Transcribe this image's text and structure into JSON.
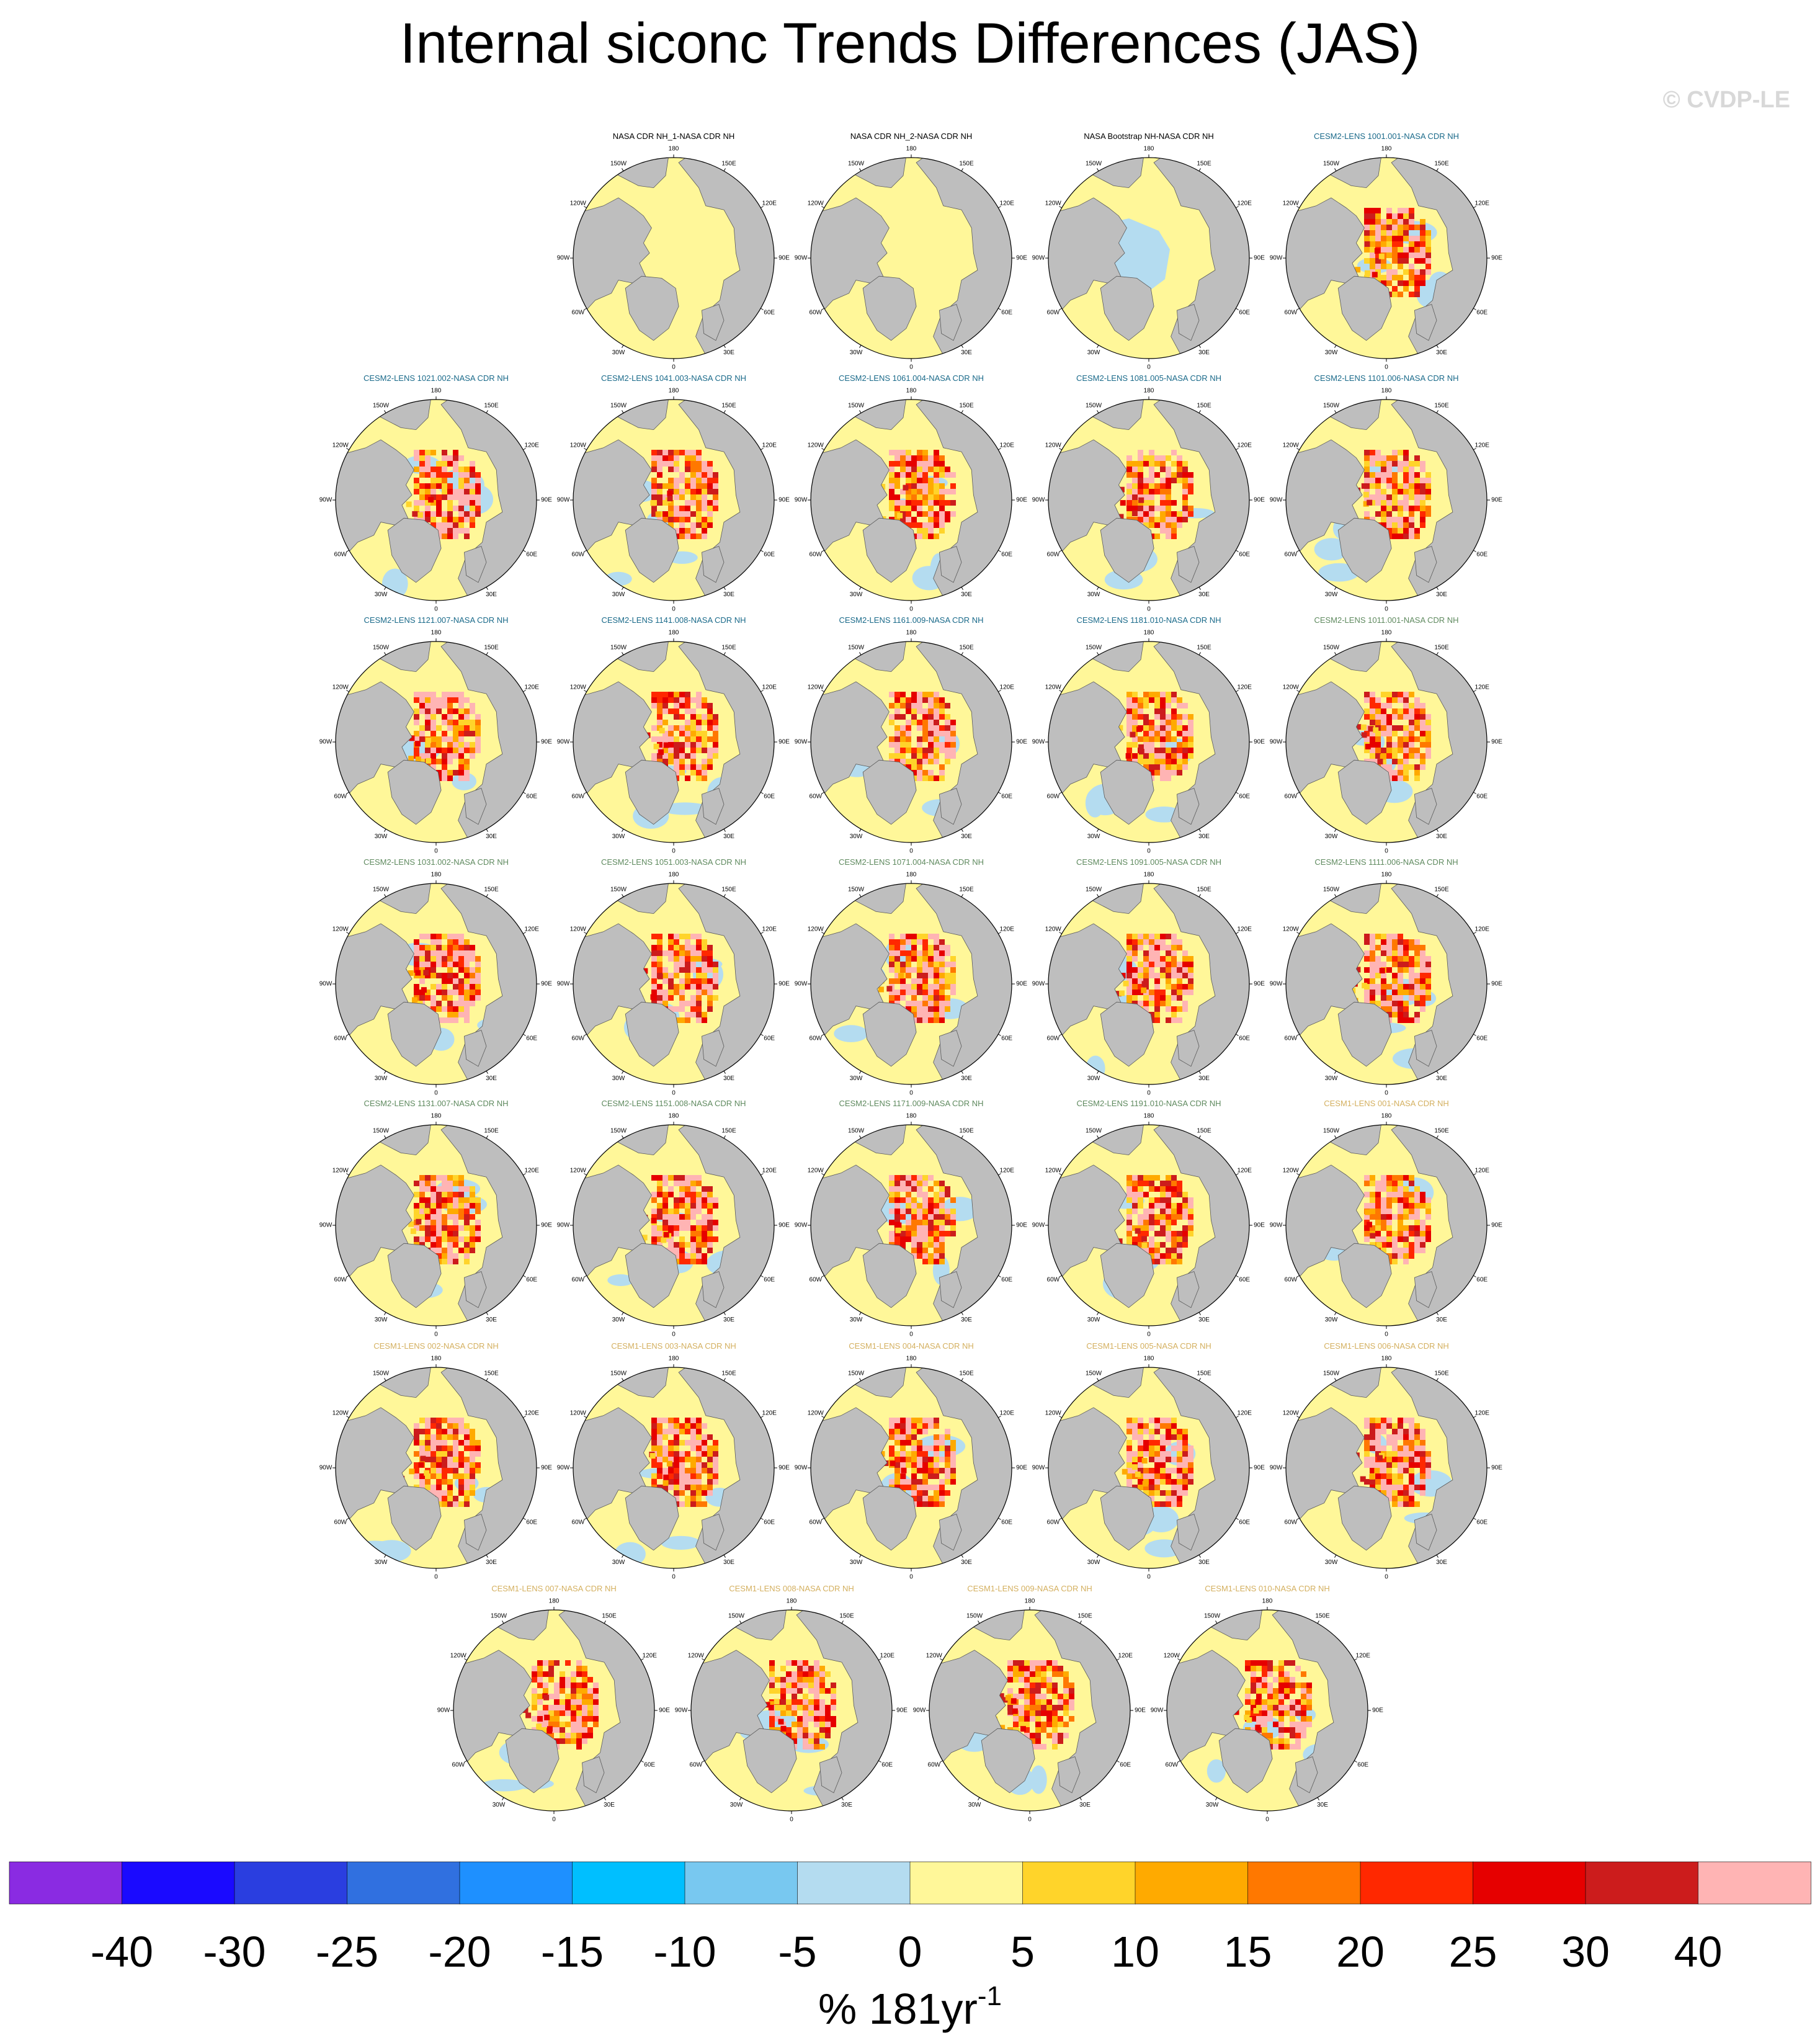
{
  "title": "Internal siconc Trends Differences (JAS)",
  "watermark": "© CVDP-LE",
  "colors": {
    "land": "#bebebe",
    "ocean_default": "#fff799",
    "title_obs": "#000000",
    "title_cesm2_a": "#1a6a8a",
    "title_cesm2_b": "#5f8a5f",
    "title_cesm1": "#d4b060"
  },
  "lon_labels": [
    "180",
    "150E",
    "120E",
    "90E",
    "60E",
    "30E",
    "0",
    "30W",
    "60W",
    "90W",
    "120W",
    "150W"
  ],
  "chart_data": {
    "type": "heatmap",
    "projection": "north-polar-stereographic",
    "panels": [
      {
        "row": 0,
        "col": 1,
        "title": "NASA CDR NH_1-NASA CDR NH",
        "group": "obs",
        "pattern": "obs_yellow"
      },
      {
        "row": 0,
        "col": 2,
        "title": "NASA CDR NH_2-NASA CDR NH",
        "group": "obs",
        "pattern": "obs_yellow"
      },
      {
        "row": 0,
        "col": 3,
        "title": "NASA Bootstrap NH-NASA CDR NH",
        "group": "obs",
        "pattern": "obs_blue"
      },
      {
        "row": 0,
        "col": 4,
        "title": "CESM2-LENS 1001.001-NASA CDR NH",
        "group": "cesm2_a",
        "pattern": "model"
      },
      {
        "row": 1,
        "col": 0,
        "title": "CESM2-LENS 1021.002-NASA CDR NH",
        "group": "cesm2_a",
        "pattern": "model"
      },
      {
        "row": 1,
        "col": 1,
        "title": "CESM2-LENS 1041.003-NASA CDR NH",
        "group": "cesm2_a",
        "pattern": "model"
      },
      {
        "row": 1,
        "col": 2,
        "title": "CESM2-LENS 1061.004-NASA CDR NH",
        "group": "cesm2_a",
        "pattern": "model"
      },
      {
        "row": 1,
        "col": 3,
        "title": "CESM2-LENS 1081.005-NASA CDR NH",
        "group": "cesm2_a",
        "pattern": "model"
      },
      {
        "row": 1,
        "col": 4,
        "title": "CESM2-LENS 1101.006-NASA CDR NH",
        "group": "cesm2_a",
        "pattern": "model"
      },
      {
        "row": 2,
        "col": 0,
        "title": "CESM2-LENS 1121.007-NASA CDR NH",
        "group": "cesm2_a",
        "pattern": "model"
      },
      {
        "row": 2,
        "col": 1,
        "title": "CESM2-LENS 1141.008-NASA CDR NH",
        "group": "cesm2_a",
        "pattern": "model"
      },
      {
        "row": 2,
        "col": 2,
        "title": "CESM2-LENS 1161.009-NASA CDR NH",
        "group": "cesm2_a",
        "pattern": "model"
      },
      {
        "row": 2,
        "col": 3,
        "title": "CESM2-LENS 1181.010-NASA CDR NH",
        "group": "cesm2_a",
        "pattern": "model"
      },
      {
        "row": 2,
        "col": 4,
        "title": "CESM2-LENS 1011.001-NASA CDR NH",
        "group": "cesm2_b",
        "pattern": "model"
      },
      {
        "row": 3,
        "col": 0,
        "title": "CESM2-LENS 1031.002-NASA CDR NH",
        "group": "cesm2_b",
        "pattern": "model"
      },
      {
        "row": 3,
        "col": 1,
        "title": "CESM2-LENS 1051.003-NASA CDR NH",
        "group": "cesm2_b",
        "pattern": "model"
      },
      {
        "row": 3,
        "col": 2,
        "title": "CESM2-LENS 1071.004-NASA CDR NH",
        "group": "cesm2_b",
        "pattern": "model"
      },
      {
        "row": 3,
        "col": 3,
        "title": "CESM2-LENS 1091.005-NASA CDR NH",
        "group": "cesm2_b",
        "pattern": "model"
      },
      {
        "row": 3,
        "col": 4,
        "title": "CESM2-LENS 1111.006-NASA CDR NH",
        "group": "cesm2_b",
        "pattern": "model"
      },
      {
        "row": 4,
        "col": 0,
        "title": "CESM2-LENS 1131.007-NASA CDR NH",
        "group": "cesm2_b",
        "pattern": "model"
      },
      {
        "row": 4,
        "col": 1,
        "title": "CESM2-LENS 1151.008-NASA CDR NH",
        "group": "cesm2_b",
        "pattern": "model"
      },
      {
        "row": 4,
        "col": 2,
        "title": "CESM2-LENS 1171.009-NASA CDR NH",
        "group": "cesm2_b",
        "pattern": "model"
      },
      {
        "row": 4,
        "col": 3,
        "title": "CESM2-LENS 1191.010-NASA CDR NH",
        "group": "cesm2_b",
        "pattern": "model"
      },
      {
        "row": 4,
        "col": 4,
        "title": "CESM1-LENS 001-NASA CDR NH",
        "group": "cesm1",
        "pattern": "model"
      },
      {
        "row": 5,
        "col": 0,
        "title": "CESM1-LENS 002-NASA CDR NH",
        "group": "cesm1",
        "pattern": "model"
      },
      {
        "row": 5,
        "col": 1,
        "title": "CESM1-LENS 003-NASA CDR NH",
        "group": "cesm1",
        "pattern": "model"
      },
      {
        "row": 5,
        "col": 2,
        "title": "CESM1-LENS 004-NASA CDR NH",
        "group": "cesm1",
        "pattern": "model"
      },
      {
        "row": 5,
        "col": 3,
        "title": "CESM1-LENS 005-NASA CDR NH",
        "group": "cesm1",
        "pattern": "model"
      },
      {
        "row": 5,
        "col": 4,
        "title": "CESM1-LENS 006-NASA CDR NH",
        "group": "cesm1",
        "pattern": "model"
      },
      {
        "row": 6,
        "col": 0,
        "title": "CESM1-LENS 007-NASA CDR NH",
        "group": "cesm1",
        "pattern": "model"
      },
      {
        "row": 6,
        "col": 1,
        "title": "CESM1-LENS 008-NASA CDR NH",
        "group": "cesm1",
        "pattern": "model"
      },
      {
        "row": 6,
        "col": 2,
        "title": "CESM1-LENS 009-NASA CDR NH",
        "group": "cesm1",
        "pattern": "model"
      },
      {
        "row": 6,
        "col": 3,
        "title": "CESM1-LENS 010-NASA CDR NH",
        "group": "cesm1",
        "pattern": "model"
      }
    ],
    "colorbar": {
      "levels": [
        "-40",
        "-30",
        "-25",
        "-20",
        "-15",
        "-10",
        "-5",
        "0",
        "5",
        "10",
        "15",
        "20",
        "25",
        "30",
        "40"
      ],
      "colors": [
        "#8a2be2",
        "#1a0aff",
        "#2a3ee0",
        "#3070e0",
        "#1e90ff",
        "#00bfff",
        "#78c8f0",
        "#b4dcf0",
        "#fff799",
        "#ffd42a",
        "#ffaa00",
        "#ff7800",
        "#ff2800",
        "#e60000",
        "#cc1c1c",
        "#ffb4b4"
      ],
      "label_main": "% 181yr",
      "label_sup": "-1"
    }
  }
}
